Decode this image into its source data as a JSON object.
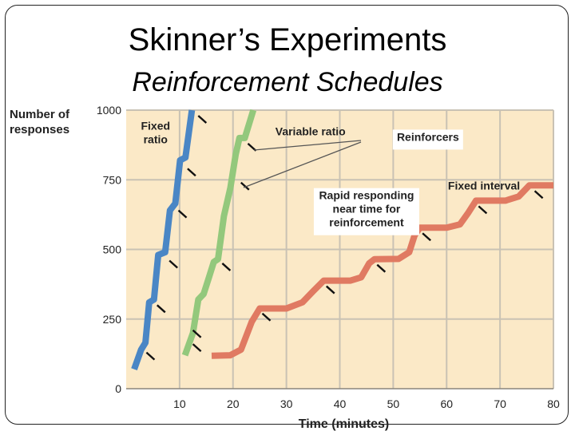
{
  "slide": {
    "title": "Skinner’s Experiments",
    "subtitle": "Reinforcement Schedules"
  },
  "chart_data": {
    "type": "line",
    "xlabel": "Time (minutes)",
    "ylabel": "Number of responses",
    "xlim": [
      0,
      80
    ],
    "ylim": [
      0,
      1000
    ],
    "x_ticks": [
      10,
      20,
      30,
      40,
      50,
      60,
      70,
      80
    ],
    "y_ticks": [
      0,
      250,
      500,
      750,
      1000
    ],
    "grid": true,
    "background_color": "#fbe9c7",
    "series": [
      {
        "name": "Fixed ratio",
        "color": "#4a86c5",
        "points": [
          [
            1.5,
            70
          ],
          [
            2.8,
            140
          ],
          [
            3.6,
            165
          ],
          [
            4.3,
            310
          ],
          [
            5.2,
            320
          ],
          [
            6.0,
            480
          ],
          [
            7.3,
            490
          ],
          [
            8.2,
            640
          ],
          [
            9.2,
            665
          ],
          [
            10.1,
            820
          ],
          [
            11.1,
            830
          ],
          [
            12.3,
            1000
          ]
        ],
        "reinforcer_markers": [
          [
            3.8,
            130
          ],
          [
            5.8,
            300
          ],
          [
            8.1,
            460
          ],
          [
            9.8,
            640
          ],
          [
            11.5,
            790
          ],
          [
            13.5,
            980
          ]
        ]
      },
      {
        "name": "Variable ratio",
        "color": "#93c87c",
        "points": [
          [
            11.0,
            120
          ],
          [
            12.5,
            200
          ],
          [
            13.5,
            320
          ],
          [
            14.5,
            340
          ],
          [
            15.5,
            400
          ],
          [
            16.4,
            455
          ],
          [
            17.2,
            465
          ],
          [
            18.3,
            620
          ],
          [
            19.5,
            720
          ],
          [
            20.5,
            840
          ],
          [
            21.2,
            900
          ],
          [
            22.2,
            900
          ],
          [
            23.8,
            1000
          ]
        ],
        "reinforcer_markers": [
          [
            12.5,
            160
          ],
          [
            12.5,
            210
          ],
          [
            18.0,
            450
          ],
          [
            21.5,
            740
          ],
          [
            22.8,
            880
          ]
        ]
      },
      {
        "name": "Fixed interval",
        "color": "#e07a62",
        "points": [
          [
            16,
            118
          ],
          [
            19.5,
            120
          ],
          [
            21.5,
            140
          ],
          [
            23.5,
            240
          ],
          [
            25,
            288
          ],
          [
            30,
            288
          ],
          [
            33,
            310
          ],
          [
            35,
            350
          ],
          [
            37,
            388
          ],
          [
            42,
            388
          ],
          [
            44,
            400
          ],
          [
            45.5,
            450
          ],
          [
            46.5,
            465
          ],
          [
            51,
            466
          ],
          [
            53,
            490
          ],
          [
            54,
            550
          ],
          [
            55,
            578
          ],
          [
            60,
            578
          ],
          [
            62.5,
            590
          ],
          [
            64,
            630
          ],
          [
            65.5,
            675
          ],
          [
            71,
            675
          ],
          [
            73.5,
            690
          ],
          [
            75.5,
            730
          ],
          [
            80,
            730
          ]
        ],
        "reinforcer_markers": [
          [
            25.5,
            270
          ],
          [
            37.5,
            368
          ],
          [
            47,
            445
          ],
          [
            55.5,
            558
          ],
          [
            66,
            655
          ],
          [
            76.5,
            710
          ]
        ]
      }
    ],
    "annotations": [
      {
        "text": "Fixed ratio",
        "lines": [
          "Fixed",
          "ratio"
        ],
        "x": 5.5,
        "y": 930
      },
      {
        "text": "Variable ratio",
        "lines": [
          "Variable ratio"
        ],
        "x": 34.5,
        "y": 910
      },
      {
        "text": "Reinforcers",
        "lines": [
          "Reinforcers"
        ],
        "x": 56.5,
        "y": 890,
        "boxed": true
      },
      {
        "text": "Fixed interval",
        "lines": [
          "Fixed interval"
        ],
        "x": 67,
        "y": 715
      },
      {
        "text": "Rapid responding near time for reinforcement",
        "lines": [
          "Rapid responding",
          "near time for",
          "reinforcement"
        ],
        "x": 45,
        "y": 680,
        "boxed": true
      }
    ]
  }
}
